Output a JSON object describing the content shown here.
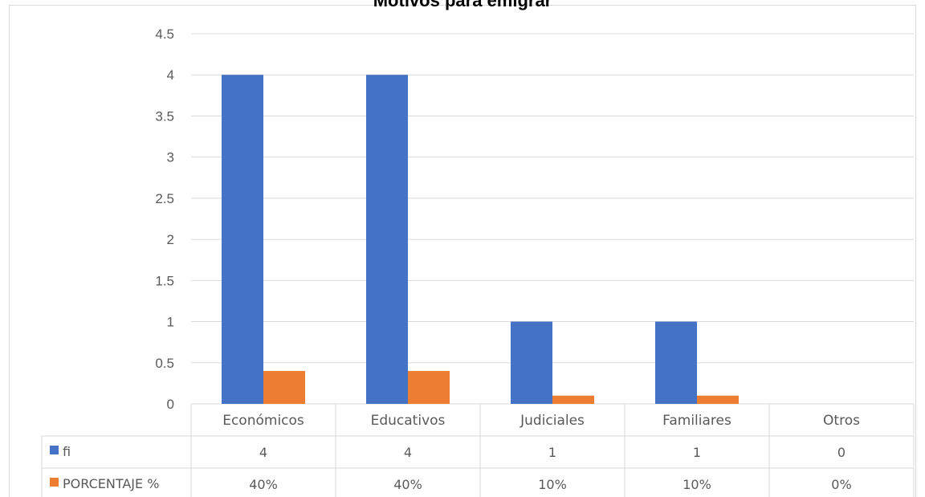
{
  "chart_data": {
    "type": "bar",
    "title": "Motivos para emigrar",
    "categories": [
      "Económicos",
      "Educativos",
      "Judiciales",
      "Familiares",
      "Otros"
    ],
    "series": [
      {
        "name": "fi",
        "values": [
          4,
          4,
          1,
          1,
          0
        ],
        "color": "#4472c4",
        "table_labels": [
          "4",
          "4",
          "1",
          "1",
          "0"
        ]
      },
      {
        "name": "PORCENTAJE %",
        "values": [
          0.4,
          0.4,
          0.1,
          0.1,
          0
        ],
        "color": "#ed7d31",
        "table_labels": [
          "40%",
          "40%",
          "10%",
          "10%",
          "0%"
        ]
      }
    ],
    "ylim": [
      0,
      4.5
    ],
    "yticks": [
      "0",
      "0.5",
      "1",
      "1.5",
      "2",
      "2.5",
      "3",
      "3.5",
      "4",
      "4.5"
    ],
    "grid": true,
    "legend": "data-table"
  }
}
